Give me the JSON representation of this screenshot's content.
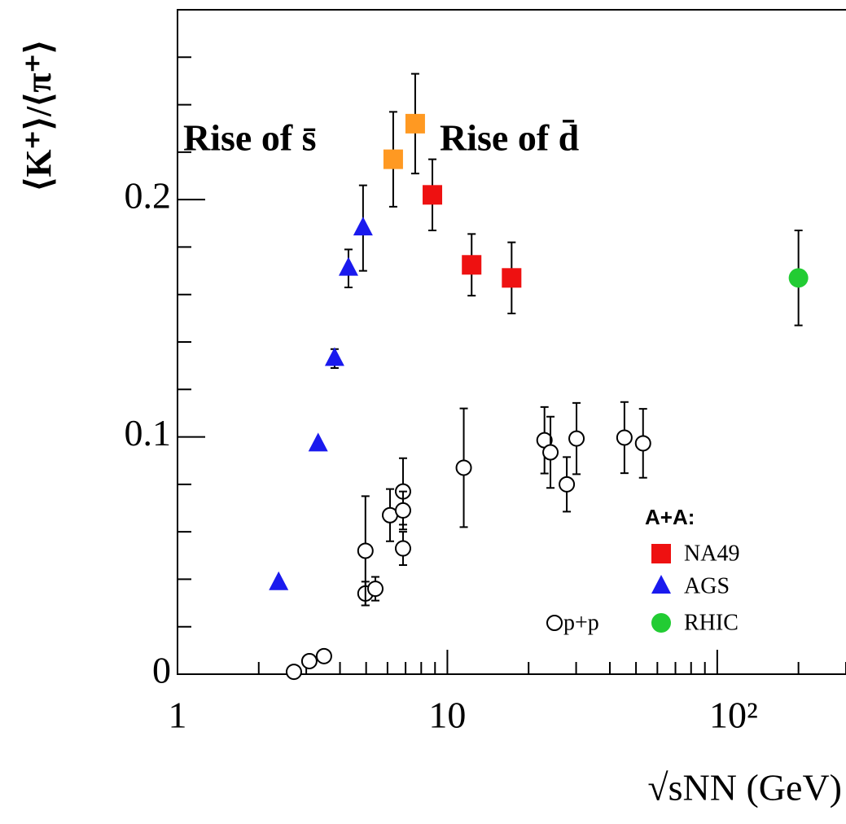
{
  "chart_data": {
    "type": "scatter",
    "y_label": "⟨K⁺⟩/⟨π⁺⟩",
    "x_label": "√sNN (GeV)",
    "xscale": "log",
    "xlim": [
      1,
      300
    ],
    "ylim": [
      0,
      0.28
    ],
    "xticks": [
      1,
      10,
      {
        "value": 100,
        "label": "10²"
      }
    ],
    "xminorticks": [
      2,
      3,
      4,
      5,
      6,
      7,
      8,
      9,
      20,
      30,
      40,
      50,
      60,
      70,
      80,
      90,
      200,
      300
    ],
    "yticks": [
      0,
      0.1,
      0.2
    ],
    "yminorticks": [
      0.02,
      0.04,
      0.06,
      0.08,
      0.12,
      0.14,
      0.16,
      0.18,
      0.22,
      0.24,
      0.26
    ],
    "annotations": [
      {
        "text": "Rise of s̄",
        "color": "#1a1aee"
      },
      {
        "text": "Rise of d̄",
        "color": "#ee1111"
      }
    ],
    "legend_title": "A+A:",
    "series": [
      {
        "name": "NA49",
        "color": "#ee1111",
        "marker": "square",
        "point_colors": [
          "#ff9922",
          "#ff9922",
          "#ee1111",
          "#ee1111",
          "#ee1111"
        ],
        "x": [
          6.3,
          7.6,
          8.8,
          12.3,
          17.3
        ],
        "values": [
          0.217,
          0.232,
          0.202,
          0.1725,
          0.167
        ],
        "errors": [
          0.02,
          0.021,
          0.015,
          0.013,
          0.015
        ]
      },
      {
        "name": "AGS",
        "color": "#1a1aee",
        "marker": "triangle",
        "x": [
          2.37,
          3.32,
          3.82,
          4.3,
          4.87
        ],
        "values": [
          0.0385,
          0.097,
          0.133,
          0.171,
          0.188
        ],
        "errors": [
          0,
          0,
          0.004,
          0.008,
          0.018
        ]
      },
      {
        "name": "RHIC",
        "color": "#22cc33",
        "marker": "circle",
        "x": [
          200
        ],
        "values": [
          0.167
        ],
        "errors": [
          0.02
        ]
      },
      {
        "name": "p+p",
        "color": "#000000",
        "marker": "circle-open",
        "x": [
          2.7,
          3.08,
          3.49,
          4.97,
          4.97,
          5.41,
          6.13,
          6.85,
          6.85,
          6.85,
          11.5,
          22.9,
          24.1,
          27.7,
          30.1,
          45.3,
          53.1
        ],
        "values": [
          0.001,
          0.0055,
          0.0076,
          0.034,
          0.052,
          0.036,
          0.067,
          0.077,
          0.069,
          0.053,
          0.087,
          0.0986,
          0.0935,
          0.08,
          0.0993,
          0.0997,
          0.0973
        ],
        "errors": [
          0,
          0,
          0,
          0.005,
          0.023,
          0.005,
          0.011,
          0.014,
          0.008,
          0.007,
          0.025,
          0.014,
          0.015,
          0.0115,
          0.015,
          0.015,
          0.0145
        ]
      }
    ]
  }
}
